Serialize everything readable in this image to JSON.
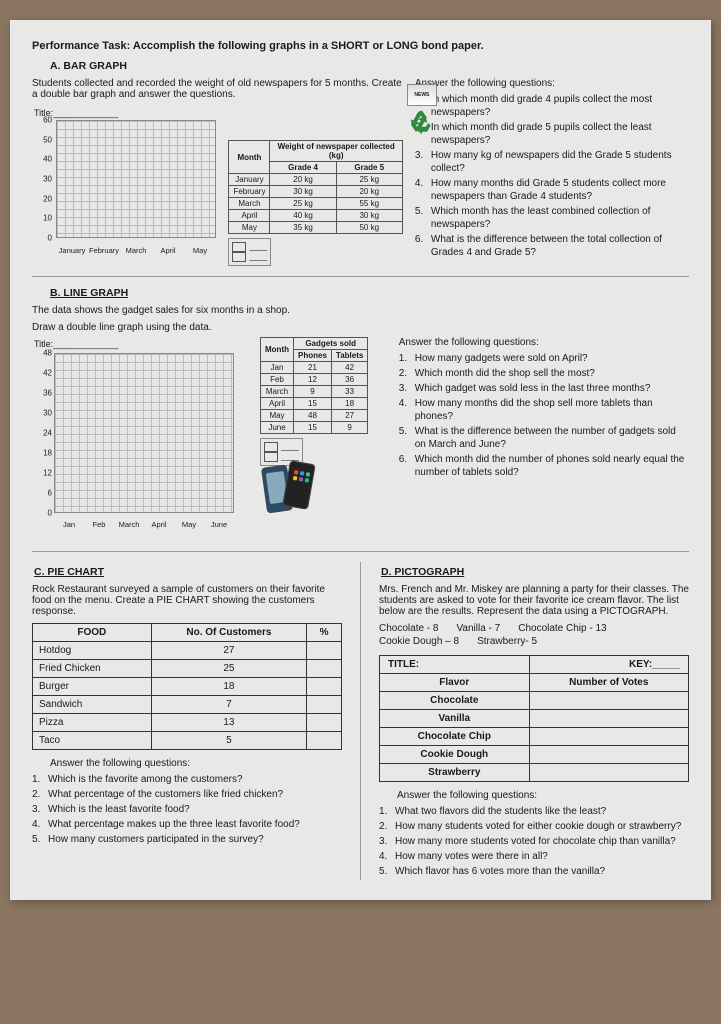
{
  "main_title": "Performance Task: Accomplish the following graphs in a SHORT or LONG bond paper.",
  "A": {
    "label": "A.  BAR GRAPH",
    "intro": "Students collected and recorded the weight of old newspapers for 5 months. Create a double bar graph and answer the questions.",
    "chart_title": "Title:_____________",
    "y_ticks": [
      "60",
      "50",
      "40",
      "30",
      "20",
      "10",
      "0"
    ],
    "x_ticks": [
      "January",
      "February",
      "March",
      "April",
      "May"
    ],
    "tbl_head": "Weight of newspaper collected (kg)",
    "cols": [
      "Month",
      "Grade 4",
      "Grade 5"
    ],
    "rows": [
      [
        "January",
        "20 kg",
        "25 kg"
      ],
      [
        "February",
        "30 kg",
        "20 kg"
      ],
      [
        "March",
        "25 kg",
        "55 kg"
      ],
      [
        "April",
        "40 kg",
        "30 kg"
      ],
      [
        "May",
        "35 kg",
        "50 kg"
      ]
    ],
    "qhead": "Answer the following questions:",
    "q": [
      "In which month did grade 4 pupils collect the most newspapers?",
      "In which month did grade 5 pupils collect the least newspapers?",
      "How many kg of newspapers did the Grade 5 students collect?",
      "How many months did Grade 5 students collect more newspapers than Grade 4 students?",
      "Which month has the least combined collection of newspapers?",
      "What is the difference between the total collection of Grades 4 and Grade 5?"
    ]
  },
  "B": {
    "label": "B.  LINE GRAPH",
    "intro": "The data shows the gadget sales for six months in a shop.",
    "intro2": "Draw a double line graph using the data.",
    "chart_title": "Title:_____________",
    "y_ticks": [
      "48",
      "42",
      "36",
      "30",
      "24",
      "18",
      "12",
      "6",
      "0"
    ],
    "x_ticks": [
      "Jan",
      "Feb",
      "March",
      "April",
      "May",
      "June"
    ],
    "cols": [
      "Month",
      "Phones",
      "Tablets"
    ],
    "tbl_head": "Gadgets sold",
    "rows": [
      [
        "Jan",
        "21",
        "42"
      ],
      [
        "Feb",
        "12",
        "36"
      ],
      [
        "March",
        "9",
        "33"
      ],
      [
        "April",
        "15",
        "18"
      ],
      [
        "May",
        "48",
        "27"
      ],
      [
        "June",
        "15",
        "9"
      ]
    ],
    "qhead": "Answer the following questions:",
    "q": [
      "How many gadgets were sold on April?",
      "Which month did the shop sell the most?",
      "Which gadget was sold less in the last three months?",
      "How many months did the shop sell more tablets than phones?",
      "What is the difference between the number of gadgets sold on March and June?",
      "Which month did the number of phones sold nearly equal the number of tablets sold?"
    ]
  },
  "C": {
    "label": "C.  PIE CHART",
    "intro": "Rock Restaurant surveyed a sample of customers on their favorite food on the menu. Create a PIE CHART showing the customers response.",
    "cols": [
      "FOOD",
      "No. Of Customers",
      "%"
    ],
    "rows": [
      [
        "Hotdog",
        "27",
        ""
      ],
      [
        "Fried Chicken",
        "25",
        ""
      ],
      [
        "Burger",
        "18",
        ""
      ],
      [
        "Sandwich",
        "7",
        ""
      ],
      [
        "Pizza",
        "13",
        ""
      ],
      [
        "Taco",
        "5",
        ""
      ]
    ],
    "qhead": "Answer the following questions:",
    "q": [
      "Which is the favorite among the customers?",
      "What percentage of the customers like fried chicken?",
      "Which is the least favorite food?",
      "What percentage makes up the three least favorite food?",
      "How many customers participated in the survey?"
    ]
  },
  "D": {
    "label": "D. PICTOGRAPH",
    "intro": "Mrs. French and Mr. Miskey are planning a party for their classes. The students are asked to vote for their favorite ice cream flavor. The list below are the results. Represent the data using a PICTOGRAPH.",
    "items": [
      [
        "Chocolate - 8",
        "Vanilla - 7",
        "Chocolate Chip - 13"
      ],
      [
        "Cookie Dough – 8",
        "Strawberry- 5",
        ""
      ]
    ],
    "tbl_title": "TITLE:",
    "tbl_key": "KEY:_____",
    "col1": "Flavor",
    "col2": "Number of Votes",
    "flavors": [
      "Chocolate",
      "Vanilla",
      "Chocolate Chip",
      "Cookie Dough",
      "Strawberry"
    ],
    "qhead": "Answer the following questions:",
    "q": [
      "What two flavors did the students like the least?",
      "How many students voted for either cookie dough or strawberry?",
      "How many more students voted for chocolate chip than vanilla?",
      "How many votes were there in all?",
      "Which flavor has 6 votes more than the vanilla?"
    ]
  }
}
